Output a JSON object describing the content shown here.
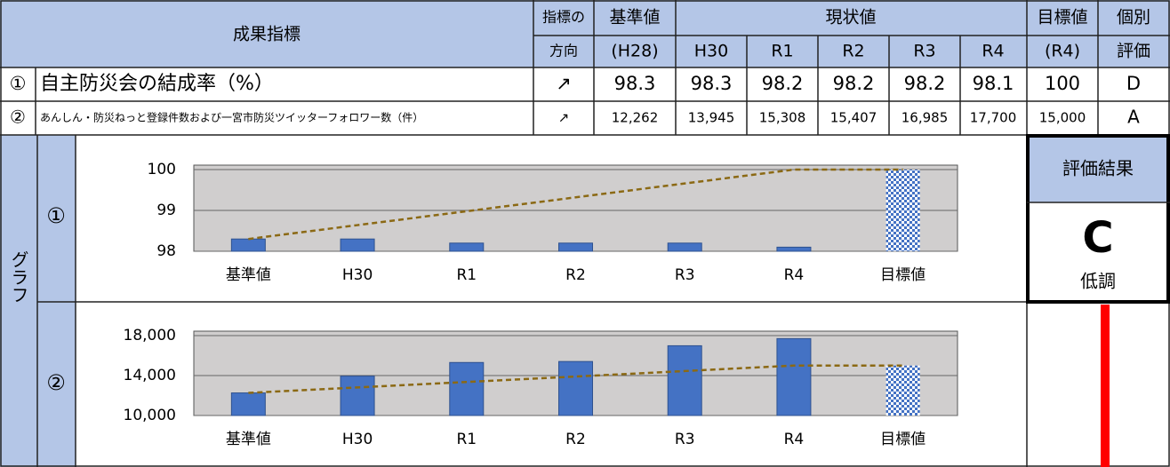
{
  "table": {
    "header": {
      "indicator": "成果指標",
      "direction": [
        "指標の",
        "方向"
      ],
      "base": [
        "基準値",
        "(H28)"
      ],
      "current": "現状値",
      "years": [
        "H30",
        "R1",
        "R2",
        "R3",
        "R4"
      ],
      "target": [
        "目標値",
        "(R4)"
      ],
      "evaluation": [
        "個別",
        "評価"
      ]
    },
    "rows": [
      [
        "①",
        "自主防災会の結成率（%）",
        "↗",
        "98.3",
        "98.3",
        "98.2",
        "98.2",
        "98.2",
        "98.1",
        "100",
        "D"
      ],
      [
        "②",
        "あんしん・防災ねっと登録件数および一宮市防災ツイッターフォロワー数（件）",
        "↗",
        "12,262",
        "13,945",
        "15,308",
        "15,407",
        "16,985",
        "17,700",
        "15,000",
        "A"
      ]
    ],
    "graph_label": "グラフ",
    "result": {
      "title": "評価結果",
      "grade": "C",
      "grade_label": "低調"
    }
  },
  "chart_data": [
    {
      "type": "bar",
      "categories": [
        "基準値",
        "H30",
        "R1",
        "R2",
        "R3",
        "R4",
        "目標値"
      ],
      "series": [
        {
          "color": "#4472c4",
          "values": [
            98.3,
            98.3,
            98.2,
            98.2,
            98.2,
            98.1,
            100
          ],
          "patterned": [
            false,
            false,
            false,
            false,
            false,
            false,
            true
          ]
        },
        {
          "type": "line",
          "color": "#8b6914",
          "dashed": true,
          "values": [
            98.3,
            98.64,
            98.98,
            99.32,
            99.66,
            100,
            100
          ]
        }
      ],
      "ylim": [
        98,
        100
      ],
      "yticks": [
        98,
        99,
        100
      ],
      "grid": true
    },
    {
      "type": "bar",
      "categories": [
        "基準値",
        "H30",
        "R1",
        "R2",
        "R3",
        "R4",
        "目標値"
      ],
      "series": [
        {
          "color": "#4472c4",
          "values": [
            12262,
            13945,
            15308,
            15407,
            16985,
            17700,
            15000
          ],
          "patterned": [
            false,
            false,
            false,
            false,
            false,
            false,
            true
          ]
        },
        {
          "type": "line",
          "color": "#8b6914",
          "dashed": true,
          "values": [
            12262,
            12810,
            13357,
            13905,
            14452,
            15000,
            15000
          ]
        }
      ],
      "ylim": [
        10000,
        18000
      ],
      "yticks": [
        {
          "value": 10000,
          "label": "10,000"
        },
        {
          "value": 14000,
          "label": "14,000"
        },
        {
          "value": 18000,
          "label": "18,000"
        }
      ],
      "grid": true
    }
  ]
}
